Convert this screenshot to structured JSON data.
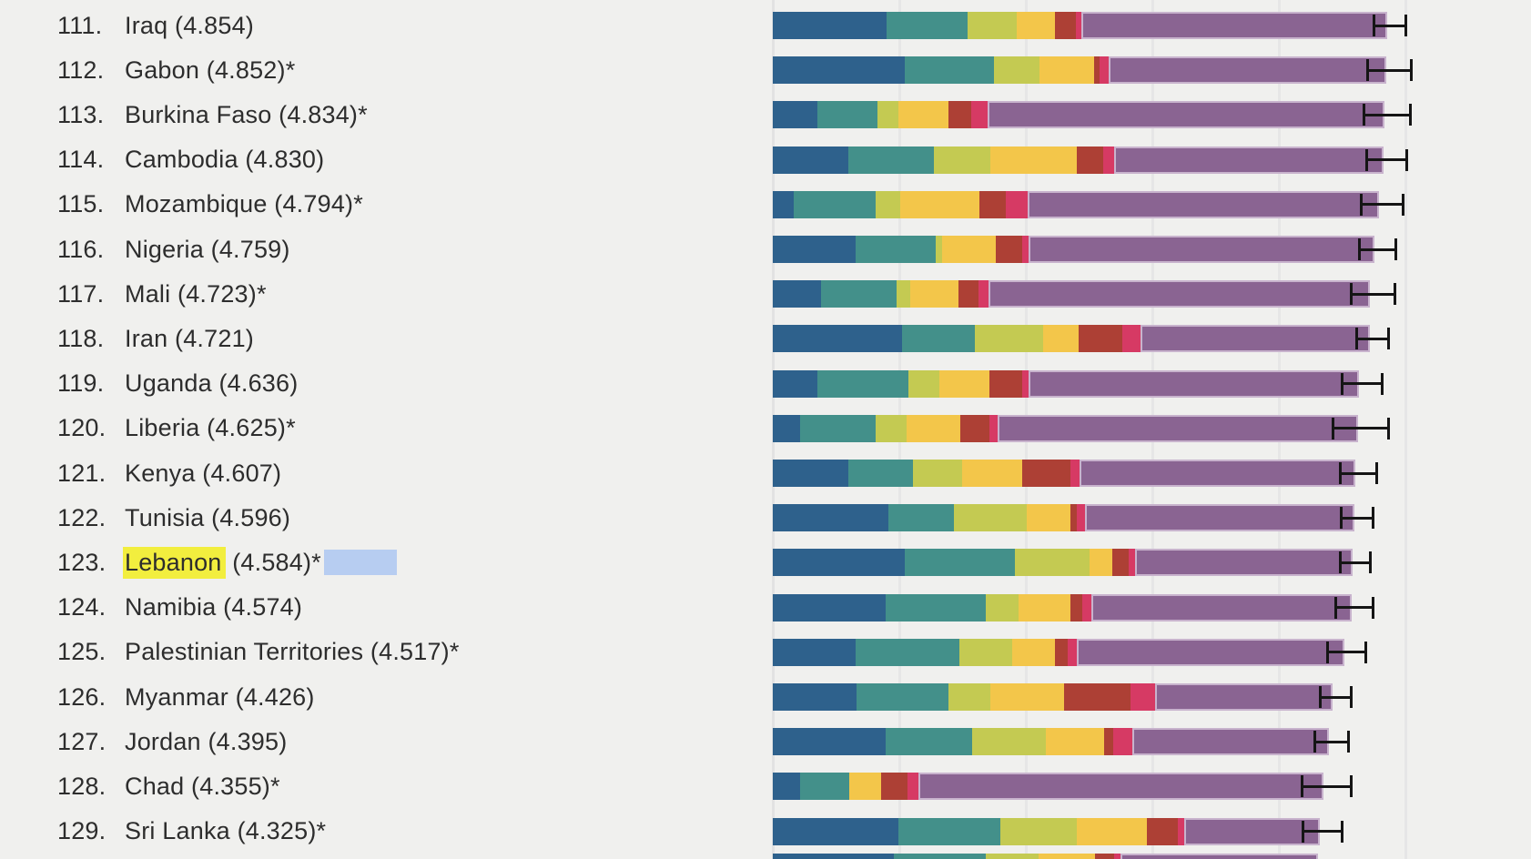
{
  "chart_data": {
    "type": "bar",
    "orientation": "horizontal-stacked",
    "note": "Ranked country list with stacked score components and error bars",
    "x_axis": {
      "min": 0,
      "max": 6,
      "gridline_scores": [
        0,
        1,
        2,
        3,
        4,
        5
      ],
      "grid": true
    },
    "segment_color_names": [
      "navy-blue",
      "teal",
      "olive-green",
      "yellow",
      "brick-red",
      "magenta",
      "purple"
    ],
    "segment_colors": [
      "#2e618c",
      "#43908a",
      "#c4ca52",
      "#f3c64a",
      "#ad4035",
      "#d63a64",
      "#8a6492"
    ],
    "purple_border_color": "#c8b3cd",
    "error_bar_color": "#151515",
    "background_color": "#f0f0ee",
    "gridline_color": "#e6e6e6",
    "text_color": "#2d2d2d",
    "rows": [
      {
        "rank_label": "111.",
        "country": "Iraq",
        "score": 4.854,
        "label_parts": [
          {
            "text": "Iraq (4.854)",
            "highlight": false
          }
        ],
        "selection_box": false,
        "values": [
          0.9,
          0.64,
          0.39,
          0.3,
          0.165,
          0.045,
          2.414
        ],
        "error": 0.115
      },
      {
        "rank_label": "112.",
        "country": "Gabon",
        "score": 4.852,
        "label_parts": [
          {
            "text": "Gabon (4.852)*",
            "highlight": false
          }
        ],
        "selection_box": false,
        "values": [
          1.045,
          0.705,
          0.36,
          0.43,
          0.045,
          0.07,
          2.197
        ],
        "error": 0.16
      },
      {
        "rank_label": "113.",
        "country": "Burkina Faso",
        "score": 4.834,
        "label_parts": [
          {
            "text": "Burkina Faso (4.834)*",
            "highlight": false
          }
        ],
        "selection_box": false,
        "values": [
          0.35,
          0.475,
          0.17,
          0.395,
          0.18,
          0.125,
          3.139
        ],
        "error": 0.17
      },
      {
        "rank_label": "114.",
        "country": "Cambodia",
        "score": 4.83,
        "label_parts": [
          {
            "text": "Cambodia (4.830)",
            "highlight": false
          }
        ],
        "selection_box": false,
        "values": [
          0.6,
          0.67,
          0.45,
          0.685,
          0.21,
          0.08,
          2.135
        ],
        "error": 0.145
      },
      {
        "rank_label": "115.",
        "country": "Mozambique",
        "score": 4.794,
        "label_parts": [
          {
            "text": "Mozambique (4.794)*",
            "highlight": false
          }
        ],
        "selection_box": false,
        "values": [
          0.165,
          0.65,
          0.19,
          0.63,
          0.21,
          0.17,
          2.779
        ],
        "error": 0.155
      },
      {
        "rank_label": "116.",
        "country": "Nigeria",
        "score": 4.759,
        "label_parts": [
          {
            "text": "Nigeria (4.759)",
            "highlight": false
          }
        ],
        "selection_box": false,
        "values": [
          0.655,
          0.63,
          0.05,
          0.425,
          0.215,
          0.045,
          2.739
        ],
        "error": 0.13
      },
      {
        "rank_label": "117.",
        "country": "Mali",
        "score": 4.723,
        "label_parts": [
          {
            "text": "Mali (4.723)*",
            "highlight": false
          }
        ],
        "selection_box": false,
        "values": [
          0.38,
          0.595,
          0.11,
          0.38,
          0.16,
          0.08,
          3.018
        ],
        "error": 0.165
      },
      {
        "rank_label": "118.",
        "country": "Iran",
        "score": 4.721,
        "label_parts": [
          {
            "text": "Iran (4.721)",
            "highlight": false
          }
        ],
        "selection_box": false,
        "values": [
          1.02,
          0.575,
          0.545,
          0.275,
          0.345,
          0.15,
          1.811
        ],
        "error": 0.115
      },
      {
        "rank_label": "119.",
        "country": "Uganda",
        "score": 4.636,
        "label_parts": [
          {
            "text": "Uganda (4.636)",
            "highlight": false
          }
        ],
        "selection_box": false,
        "values": [
          0.35,
          0.725,
          0.245,
          0.395,
          0.26,
          0.05,
          2.611
        ],
        "error": 0.145
      },
      {
        "rank_label": "120.",
        "country": "Liberia",
        "score": 4.625,
        "label_parts": [
          {
            "text": "Liberia (4.625)*",
            "highlight": false
          }
        ],
        "selection_box": false,
        "values": [
          0.215,
          0.595,
          0.245,
          0.43,
          0.225,
          0.065,
          2.85
        ],
        "error": 0.21
      },
      {
        "rank_label": "121.",
        "country": "Kenya",
        "score": 4.607,
        "label_parts": [
          {
            "text": "Kenya (4.607)",
            "highlight": false
          }
        ],
        "selection_box": false,
        "values": [
          0.6,
          0.51,
          0.39,
          0.475,
          0.375,
          0.075,
          2.182
        ],
        "error": 0.135
      },
      {
        "rank_label": "122.",
        "country": "Tunisia",
        "score": 4.596,
        "label_parts": [
          {
            "text": "Tunisia (4.596)",
            "highlight": false
          }
        ],
        "selection_box": false,
        "values": [
          0.915,
          0.515,
          0.58,
          0.34,
          0.05,
          0.065,
          2.131
        ],
        "error": 0.115
      },
      {
        "rank_label": "123.",
        "country": "Lebanon",
        "score": 4.584,
        "label_parts": [
          {
            "text": "Lebanon",
            "highlight": true
          },
          {
            "text": " (4.584)*",
            "highlight": false
          }
        ],
        "selection_box": true,
        "values": [
          1.045,
          0.87,
          0.59,
          0.18,
          0.13,
          0.05,
          1.719
        ],
        "error": 0.11
      },
      {
        "rank_label": "124.",
        "country": "Namibia",
        "score": 4.574,
        "label_parts": [
          {
            "text": "Namibia (4.574)",
            "highlight": false
          }
        ],
        "selection_box": false,
        "values": [
          0.89,
          0.79,
          0.265,
          0.41,
          0.09,
          0.07,
          2.059
        ],
        "error": 0.135
      },
      {
        "rank_label": "125.",
        "country": "Palestinian Territories",
        "score": 4.517,
        "label_parts": [
          {
            "text": "Palestinian Territories (4.517)*",
            "highlight": false
          }
        ],
        "selection_box": false,
        "values": [
          0.655,
          0.82,
          0.415,
          0.34,
          0.1,
          0.07,
          2.117
        ],
        "error": 0.14
      },
      {
        "rank_label": "126.",
        "country": "Myanmar",
        "score": 4.426,
        "label_parts": [
          {
            "text": "Myanmar (4.426)",
            "highlight": false
          }
        ],
        "selection_box": false,
        "values": [
          0.665,
          0.72,
          0.335,
          0.58,
          0.53,
          0.19,
          1.406
        ],
        "error": 0.11
      },
      {
        "rank_label": "127.",
        "country": "Jordan",
        "score": 4.395,
        "label_parts": [
          {
            "text": "Jordan (4.395)",
            "highlight": false
          }
        ],
        "selection_box": false,
        "values": [
          0.89,
          0.685,
          0.585,
          0.46,
          0.07,
          0.15,
          1.555
        ],
        "error": 0.125
      },
      {
        "rank_label": "128.",
        "country": "Chad",
        "score": 4.355,
        "label_parts": [
          {
            "text": "Chad (4.355)*",
            "highlight": false
          }
        ],
        "selection_box": false,
        "values": [
          0.215,
          0.39,
          0.0,
          0.25,
          0.21,
          0.085,
          3.205
        ],
        "error": 0.185
      },
      {
        "rank_label": "129.",
        "country": "Sri Lanka",
        "score": 4.325,
        "label_parts": [
          {
            "text": "Sri Lanka (4.325)*",
            "highlight": false
          }
        ],
        "selection_box": false,
        "values": [
          0.99,
          0.81,
          0.605,
          0.55,
          0.25,
          0.045,
          1.075
        ],
        "error": 0.145
      }
    ],
    "partial_next_row": {
      "values": [
        0.96,
        0.72,
        0.42,
        0.45,
        0.15,
        0.05,
        1.56
      ]
    }
  },
  "highlight": {
    "highlighted_country": "Lebanon",
    "text_highlight_color": "#f2ee3e",
    "selection_box_color": "#b7cdf1"
  }
}
